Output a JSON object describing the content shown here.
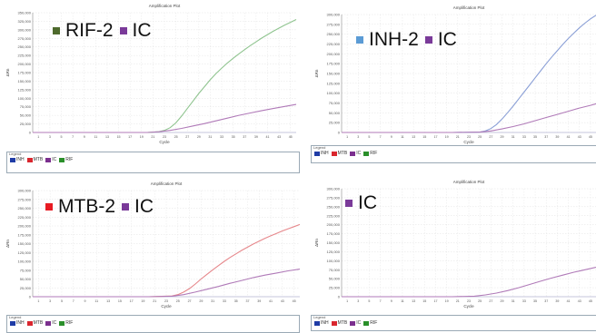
{
  "colors": {
    "inh": "#1f3ca6",
    "mtb": "#d9262e",
    "ic": "#7b2f8e",
    "rif": "#2a8f2a",
    "rif_marker": "#4e6a2d",
    "inh_marker": "#5b9bd5",
    "mtb_marker": "#e81b23",
    "ic_marker": "#7a3a99",
    "ic_curve": "#b07ab8",
    "rif_curve": "#8fc48f",
    "mtb_curve": "#e6878b",
    "inh_curve": "#8a9fd6"
  },
  "legend_entries": [
    "INH",
    "MTB",
    "IC",
    "RIF"
  ],
  "legend_caption": "Legend",
  "cycle_ticks": [
    "1",
    "3",
    "5",
    "7",
    "9",
    "11",
    "13",
    "15",
    "17",
    "19",
    "21",
    "23",
    "25",
    "27",
    "29",
    "31",
    "33",
    "35",
    "37",
    "39",
    "41",
    "43",
    "45"
  ],
  "chart_data": [
    {
      "type": "line",
      "title": "Amplification Plot",
      "xlabel": "Cycle",
      "ylabel": "ΔRn",
      "labels": [
        {
          "name": "RIF-2",
          "marker": "rif_marker"
        },
        {
          "name": "IC",
          "marker": "ic_marker"
        }
      ],
      "yticks": [
        "0",
        "25,000",
        "50,000",
        "75,000",
        "100,000",
        "125,000",
        "150,000",
        "175,000",
        "200,000",
        "225,000",
        "250,000",
        "275,000",
        "300,000",
        "325,000",
        "350,000"
      ],
      "ylim": [
        0,
        350000
      ],
      "xlim": [
        0,
        46
      ],
      "series": [
        {
          "name": "RIF-2",
          "color": "rif_curve",
          "x": [
            0,
            10,
            20,
            22,
            23,
            24,
            25,
            26,
            27,
            28,
            29,
            30,
            31,
            32,
            33,
            34,
            35,
            36,
            37,
            38,
            39,
            40,
            41,
            42,
            43,
            44,
            45,
            46
          ],
          "y": [
            0,
            0,
            0,
            2000,
            6000,
            14000,
            28000,
            48000,
            70000,
            92000,
            114000,
            134000,
            154000,
            172000,
            188000,
            203000,
            217000,
            230000,
            242000,
            254000,
            265000,
            276000,
            286000,
            296000,
            305000,
            314000,
            322000,
            330000
          ]
        },
        {
          "name": "IC",
          "color": "ic_curve",
          "x": [
            0,
            20,
            22,
            24,
            26,
            28,
            30,
            32,
            34,
            36,
            38,
            40,
            42,
            44,
            46
          ],
          "y": [
            0,
            0,
            2000,
            6000,
            12000,
            19000,
            26000,
            34000,
            42000,
            50000,
            57000,
            64000,
            70000,
            76000,
            82000
          ]
        }
      ]
    },
    {
      "type": "line",
      "title": "Amplification Plot",
      "xlabel": "Cycle",
      "ylabel": "ΔRn",
      "labels": [
        {
          "name": "INH-2",
          "marker": "inh_marker"
        },
        {
          "name": "IC",
          "marker": "ic_marker"
        }
      ],
      "yticks": [
        "0",
        "25,000",
        "50,000",
        "75,000",
        "100,000",
        "125,000",
        "150,000",
        "175,000",
        "200,000",
        "225,000",
        "250,000",
        "275,000",
        "300,000"
      ],
      "ylim": [
        0,
        300000
      ],
      "xlim": [
        0,
        46
      ],
      "series": [
        {
          "name": "INH-2",
          "color": "inh_curve",
          "x": [
            0,
            10,
            20,
            25,
            26,
            27,
            28,
            29,
            30,
            31,
            32,
            33,
            34,
            35,
            36,
            37,
            38,
            39,
            40,
            41,
            42,
            43,
            44,
            45,
            46
          ],
          "y": [
            0,
            0,
            0,
            1000,
            4000,
            10000,
            20000,
            34000,
            50000,
            67000,
            85000,
            103000,
            121000,
            139000,
            157000,
            175000,
            192000,
            208000,
            224000,
            239000,
            253000,
            266000,
            278000,
            289000,
            298000
          ]
        },
        {
          "name": "IC",
          "color": "ic_curve",
          "x": [
            0,
            20,
            25,
            27,
            29,
            31,
            33,
            35,
            37,
            39,
            41,
            43,
            45,
            46
          ],
          "y": [
            0,
            0,
            1000,
            4000,
            9000,
            15000,
            22000,
            30000,
            38000,
            46000,
            54000,
            62000,
            69000,
            73000
          ]
        }
      ]
    },
    {
      "type": "line",
      "title": "Amplification Plot",
      "xlabel": "Cycle",
      "ylabel": "ΔRn",
      "labels": [
        {
          "name": "MTB-2",
          "marker": "mtb_marker"
        },
        {
          "name": "IC",
          "marker": "ic_marker"
        }
      ],
      "yticks": [
        "0",
        "25,000",
        "50,000",
        "75,000",
        "100,000",
        "125,000",
        "150,000",
        "175,000",
        "200,000",
        "225,000",
        "250,000",
        "275,000",
        "300,000"
      ],
      "ylim": [
        0,
        300000
      ],
      "xlim": [
        0,
        46
      ],
      "series": [
        {
          "name": "MTB-2",
          "color": "mtb_curve",
          "x": [
            0,
            10,
            20,
            24,
            25,
            26,
            27,
            28,
            29,
            30,
            31,
            32,
            33,
            34,
            35,
            36,
            37,
            38,
            39,
            40,
            41,
            42,
            43,
            44,
            45,
            46
          ],
          "y": [
            0,
            0,
            0,
            2000,
            6000,
            13000,
            23000,
            36000,
            50000,
            63000,
            76000,
            88000,
            100000,
            111000,
            121000,
            131000,
            140000,
            149000,
            157000,
            165000,
            172000,
            179000,
            186000,
            192000,
            198000,
            204000
          ]
        },
        {
          "name": "IC",
          "color": "ic_curve",
          "x": [
            0,
            20,
            24,
            26,
            28,
            30,
            32,
            34,
            36,
            38,
            40,
            42,
            44,
            46
          ],
          "y": [
            0,
            0,
            1500,
            6000,
            13000,
            21000,
            29000,
            38000,
            46000,
            54000,
            61000,
            67000,
            73000,
            78000
          ]
        }
      ]
    },
    {
      "type": "line",
      "title": "Amplification Plot",
      "xlabel": "Cycle",
      "ylabel": "ΔRn",
      "labels": [
        {
          "name": "IC",
          "marker": "ic_marker"
        }
      ],
      "yticks": [
        "0",
        "25,000",
        "50,000",
        "75,000",
        "100,000",
        "125,000",
        "150,000",
        "175,000",
        "200,000",
        "225,000",
        "250,000",
        "275,000",
        "300,000"
      ],
      "ylim": [
        0,
        300000
      ],
      "xlim": [
        0,
        46
      ],
      "series": [
        {
          "name": "IC",
          "color": "ic_curve",
          "x": [
            0,
            20,
            24,
            26,
            28,
            30,
            32,
            34,
            36,
            38,
            40,
            42,
            44,
            46
          ],
          "y": [
            0,
            0,
            1500,
            5000,
            10000,
            17000,
            25000,
            34000,
            43000,
            52000,
            60000,
            68000,
            75000,
            82000
          ]
        }
      ]
    }
  ]
}
